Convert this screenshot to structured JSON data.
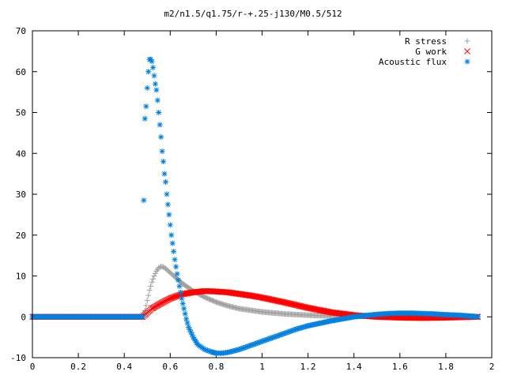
{
  "chart_data": {
    "type": "scatter",
    "title": "m2/n1.5/q1.75/r-+.25-j130/M0.5/512",
    "xlabel": "",
    "ylabel": "",
    "xlim": [
      0,
      2
    ],
    "ylim": [
      -10,
      70
    ],
    "xticks": [
      "0",
      "0.2",
      "0.4",
      "0.6",
      "0.8",
      "1",
      "1.2",
      "1.4",
      "1.6",
      "1.8",
      "2"
    ],
    "yticks": [
      "-10",
      "0",
      "10",
      "20",
      "30",
      "40",
      "50",
      "60",
      "70"
    ],
    "grid": false,
    "legend_position": "top-right",
    "series": [
      {
        "name": "R stress",
        "marker": "+",
        "color": "#a0a0a0",
        "points": [
          [
            0,
            0
          ],
          [
            0.3,
            0
          ],
          [
            0.48,
            0
          ],
          [
            0.49,
            1.5
          ],
          [
            0.5,
            4
          ],
          [
            0.51,
            6.5
          ],
          [
            0.52,
            8.5
          ],
          [
            0.53,
            10
          ],
          [
            0.54,
            11.2
          ],
          [
            0.55,
            12
          ],
          [
            0.56,
            12.3
          ],
          [
            0.57,
            12.2
          ],
          [
            0.58,
            11.8
          ],
          [
            0.6,
            10.8
          ],
          [
            0.62,
            9.8
          ],
          [
            0.65,
            8.3
          ],
          [
            0.7,
            6.3
          ],
          [
            0.75,
            4.8
          ],
          [
            0.8,
            3.6
          ],
          [
            0.85,
            2.7
          ],
          [
            0.9,
            2
          ],
          [
            0.95,
            1.6
          ],
          [
            1.0,
            1.2
          ],
          [
            1.1,
            0.7
          ],
          [
            1.2,
            0.4
          ],
          [
            1.3,
            0.2
          ],
          [
            1.4,
            0.1
          ],
          [
            1.5,
            0.3
          ],
          [
            1.6,
            0.5
          ],
          [
            1.7,
            0.6
          ],
          [
            1.8,
            0.5
          ],
          [
            1.9,
            0.2
          ],
          [
            1.94,
            0
          ]
        ]
      },
      {
        "name": "G work",
        "marker": "x",
        "color": "#ff0000",
        "points": [
          [
            0,
            0
          ],
          [
            0.3,
            0
          ],
          [
            0.48,
            0
          ],
          [
            0.5,
            1
          ],
          [
            0.52,
            2
          ],
          [
            0.55,
            3
          ],
          [
            0.6,
            4.5
          ],
          [
            0.65,
            5.5
          ],
          [
            0.7,
            6
          ],
          [
            0.75,
            6.3
          ],
          [
            0.8,
            6.2
          ],
          [
            0.85,
            6
          ],
          [
            0.9,
            5.6
          ],
          [
            0.95,
            5.2
          ],
          [
            1.0,
            4.7
          ],
          [
            1.05,
            4.1
          ],
          [
            1.1,
            3.5
          ],
          [
            1.2,
            2.2
          ],
          [
            1.3,
            1.1
          ],
          [
            1.4,
            0.4
          ],
          [
            1.5,
            0
          ],
          [
            1.6,
            -0.2
          ],
          [
            1.7,
            -0.3
          ],
          [
            1.8,
            -0.2
          ],
          [
            1.94,
            0
          ]
        ]
      },
      {
        "name": "Acoustic flux",
        "marker": "*",
        "color": "#0080e0",
        "points": [
          [
            0,
            0
          ],
          [
            0.3,
            0
          ],
          [
            0.48,
            0
          ],
          [
            0.485,
            28.5
          ],
          [
            0.49,
            48.5
          ],
          [
            0.495,
            51.5
          ],
          [
            0.5,
            56
          ],
          [
            0.505,
            60
          ],
          [
            0.51,
            63
          ],
          [
            0.515,
            63
          ],
          [
            0.52,
            62.5
          ],
          [
            0.525,
            61
          ],
          [
            0.53,
            59
          ],
          [
            0.535,
            57
          ],
          [
            0.54,
            55.5
          ],
          [
            0.545,
            53
          ],
          [
            0.55,
            50
          ],
          [
            0.555,
            47
          ],
          [
            0.56,
            44
          ],
          [
            0.565,
            40.5
          ],
          [
            0.57,
            38
          ],
          [
            0.575,
            35
          ],
          [
            0.58,
            33
          ],
          [
            0.585,
            30
          ],
          [
            0.59,
            27.5
          ],
          [
            0.595,
            25
          ],
          [
            0.6,
            22.5
          ],
          [
            0.605,
            20
          ],
          [
            0.61,
            18
          ],
          [
            0.62,
            14
          ],
          [
            0.63,
            10.5
          ],
          [
            0.64,
            7.5
          ],
          [
            0.65,
            4.5
          ],
          [
            0.66,
            2
          ],
          [
            0.67,
            -0.5
          ],
          [
            0.68,
            -2.5
          ],
          [
            0.7,
            -5
          ],
          [
            0.72,
            -6.8
          ],
          [
            0.75,
            -8
          ],
          [
            0.78,
            -8.6
          ],
          [
            0.8,
            -8.9
          ],
          [
            0.83,
            -8.9
          ],
          [
            0.86,
            -8.6
          ],
          [
            0.9,
            -8
          ],
          [
            0.95,
            -7
          ],
          [
            1.0,
            -6
          ],
          [
            1.05,
            -5
          ],
          [
            1.1,
            -4
          ],
          [
            1.15,
            -3
          ],
          [
            1.2,
            -2.2
          ],
          [
            1.25,
            -1.6
          ],
          [
            1.3,
            -1
          ],
          [
            1.35,
            -0.5
          ],
          [
            1.4,
            0
          ],
          [
            1.45,
            0.3
          ],
          [
            1.5,
            0.6
          ],
          [
            1.55,
            0.8
          ],
          [
            1.6,
            0.9
          ],
          [
            1.65,
            0.9
          ],
          [
            1.7,
            0.8
          ],
          [
            1.75,
            0.7
          ],
          [
            1.8,
            0.5
          ],
          [
            1.85,
            0.4
          ],
          [
            1.9,
            0.2
          ],
          [
            1.94,
            0
          ]
        ]
      }
    ]
  }
}
